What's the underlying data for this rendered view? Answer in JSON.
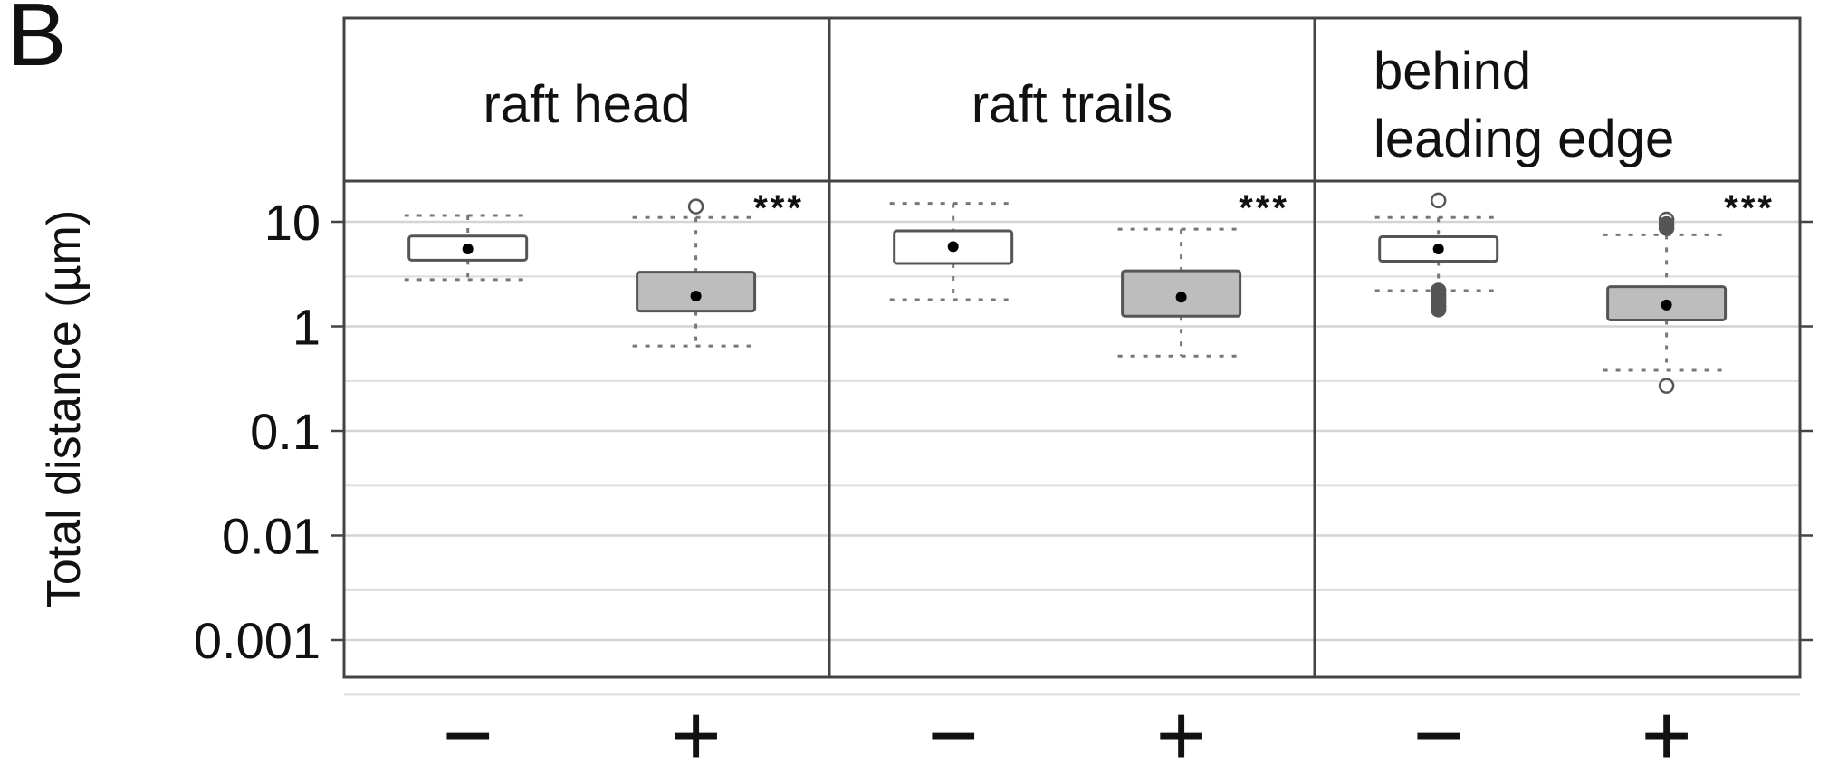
{
  "figure": {
    "panel_letter": "B"
  },
  "chart_data": {
    "type": "box",
    "ylabel": "Total distance (µm)",
    "yscale": "log",
    "ylim": [
      0.0005,
      25
    ],
    "y_ticks": [
      10,
      1,
      0.1,
      0.01,
      0.001
    ],
    "y_tick_labels": [
      "10",
      "1",
      "0.1",
      "0.01",
      "0.001"
    ],
    "grid": true,
    "facets": [
      {
        "strip_label": [
          "raft head"
        ],
        "groups": [
          {
            "label": "−",
            "fill": "#ffffff",
            "whisker_low": 2.8,
            "q1": 4.3,
            "median": 5.5,
            "q3": 7.3,
            "whisker_high": 11.5,
            "outliers": [],
            "significance": ""
          },
          {
            "label": "+",
            "fill": "#bdbdbd",
            "whisker_low": 0.65,
            "q1": 1.4,
            "median": 1.95,
            "q3": 3.3,
            "whisker_high": 11.0,
            "outliers": [
              14.0
            ],
            "significance": "***"
          }
        ]
      },
      {
        "strip_label": [
          "raft trails"
        ],
        "groups": [
          {
            "label": "−",
            "fill": "#ffffff",
            "whisker_low": 1.8,
            "q1": 4.0,
            "median": 5.8,
            "q3": 8.2,
            "whisker_high": 15.0,
            "outliers": [],
            "significance": ""
          },
          {
            "label": "+",
            "fill": "#bdbdbd",
            "whisker_low": 0.52,
            "q1": 1.25,
            "median": 1.9,
            "q3": 3.4,
            "whisker_high": 8.5,
            "outliers": [],
            "significance": "***"
          }
        ]
      },
      {
        "strip_label": [
          "behind",
          "leading edge"
        ],
        "groups": [
          {
            "label": "−",
            "fill": "#ffffff",
            "whisker_low": 2.2,
            "q1": 4.2,
            "median": 5.5,
            "q3": 7.2,
            "whisker_high": 11.0,
            "outliers": [
              16.0,
              2.2,
              2.0,
              1.85,
              1.7,
              1.55,
              1.45
            ],
            "significance": ""
          },
          {
            "label": "+",
            "fill": "#bdbdbd",
            "whisker_low": 0.38,
            "q1": 1.15,
            "median": 1.6,
            "q3": 2.4,
            "whisker_high": 7.5,
            "outliers": [
              10.5,
              9.5,
              8.7,
              0.27
            ],
            "significance": "***"
          }
        ]
      }
    ]
  }
}
